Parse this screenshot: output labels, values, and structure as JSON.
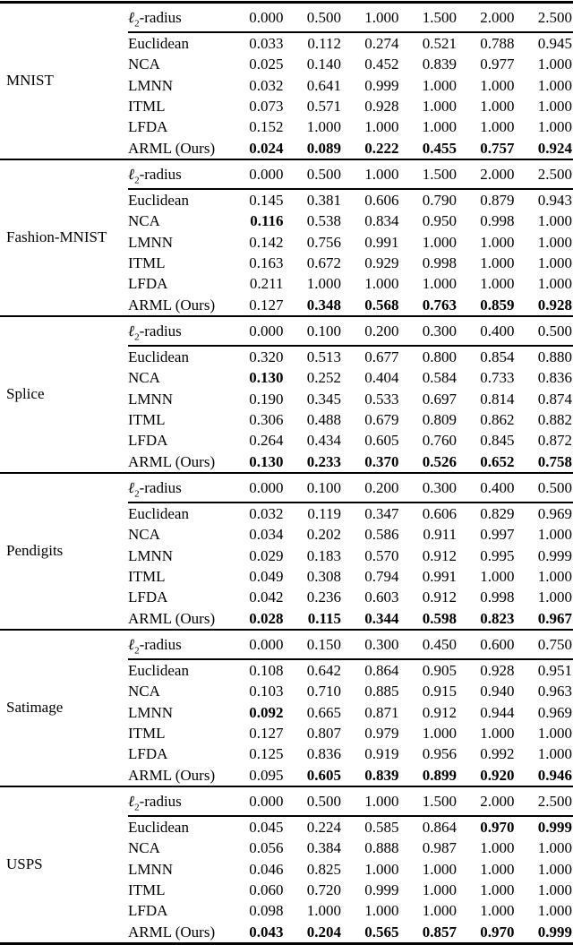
{
  "table": {
    "radius_label": {
      "symbol": "ℓ",
      "sub": "2",
      "suffix": "-radius"
    },
    "sections": [
      {
        "dataset": "MNIST",
        "slug": "mnist",
        "radii": [
          "0.000",
          "0.500",
          "1.000",
          "1.500",
          "2.000",
          "2.500"
        ],
        "rows": [
          {
            "method": "Euclidean",
            "values": [
              "0.033",
              "0.112",
              "0.274",
              "0.521",
              "0.788",
              "0.945"
            ],
            "bold": [
              0,
              0,
              0,
              0,
              0,
              0
            ]
          },
          {
            "method": "NCA",
            "values": [
              "0.025",
              "0.140",
              "0.452",
              "0.839",
              "0.977",
              "1.000"
            ],
            "bold": [
              0,
              0,
              0,
              0,
              0,
              0
            ]
          },
          {
            "method": "LMNN",
            "values": [
              "0.032",
              "0.641",
              "0.999",
              "1.000",
              "1.000",
              "1.000"
            ],
            "bold": [
              0,
              0,
              0,
              0,
              0,
              0
            ]
          },
          {
            "method": "ITML",
            "values": [
              "0.073",
              "0.571",
              "0.928",
              "1.000",
              "1.000",
              "1.000"
            ],
            "bold": [
              0,
              0,
              0,
              0,
              0,
              0
            ]
          },
          {
            "method": "LFDA",
            "values": [
              "0.152",
              "1.000",
              "1.000",
              "1.000",
              "1.000",
              "1.000"
            ],
            "bold": [
              0,
              0,
              0,
              0,
              0,
              0
            ]
          },
          {
            "method": "ARML (Ours)",
            "values": [
              "0.024",
              "0.089",
              "0.222",
              "0.455",
              "0.757",
              "0.924"
            ],
            "bold": [
              1,
              1,
              1,
              1,
              1,
              1
            ]
          }
        ]
      },
      {
        "dataset": "Fashion-MNIST",
        "slug": "fashion-mnist",
        "radii": [
          "0.000",
          "0.500",
          "1.000",
          "1.500",
          "2.000",
          "2.500"
        ],
        "rows": [
          {
            "method": "Euclidean",
            "values": [
              "0.145",
              "0.381",
              "0.606",
              "0.790",
              "0.879",
              "0.943"
            ],
            "bold": [
              0,
              0,
              0,
              0,
              0,
              0
            ]
          },
          {
            "method": "NCA",
            "values": [
              "0.116",
              "0.538",
              "0.834",
              "0.950",
              "0.998",
              "1.000"
            ],
            "bold": [
              1,
              0,
              0,
              0,
              0,
              0
            ]
          },
          {
            "method": "LMNN",
            "values": [
              "0.142",
              "0.756",
              "0.991",
              "1.000",
              "1.000",
              "1.000"
            ],
            "bold": [
              0,
              0,
              0,
              0,
              0,
              0
            ]
          },
          {
            "method": "ITML",
            "values": [
              "0.163",
              "0.672",
              "0.929",
              "0.998",
              "1.000",
              "1.000"
            ],
            "bold": [
              0,
              0,
              0,
              0,
              0,
              0
            ]
          },
          {
            "method": "LFDA",
            "values": [
              "0.211",
              "1.000",
              "1.000",
              "1.000",
              "1.000",
              "1.000"
            ],
            "bold": [
              0,
              0,
              0,
              0,
              0,
              0
            ]
          },
          {
            "method": "ARML (Ours)",
            "values": [
              "0.127",
              "0.348",
              "0.568",
              "0.763",
              "0.859",
              "0.928"
            ],
            "bold": [
              0,
              1,
              1,
              1,
              1,
              1
            ]
          }
        ]
      },
      {
        "dataset": "Splice",
        "slug": "splice",
        "radii": [
          "0.000",
          "0.100",
          "0.200",
          "0.300",
          "0.400",
          "0.500"
        ],
        "rows": [
          {
            "method": "Euclidean",
            "values": [
              "0.320",
              "0.513",
              "0.677",
              "0.800",
              "0.854",
              "0.880"
            ],
            "bold": [
              0,
              0,
              0,
              0,
              0,
              0
            ]
          },
          {
            "method": "NCA",
            "values": [
              "0.130",
              "0.252",
              "0.404",
              "0.584",
              "0.733",
              "0.836"
            ],
            "bold": [
              1,
              0,
              0,
              0,
              0,
              0
            ]
          },
          {
            "method": "LMNN",
            "values": [
              "0.190",
              "0.345",
              "0.533",
              "0.697",
              "0.814",
              "0.874"
            ],
            "bold": [
              0,
              0,
              0,
              0,
              0,
              0
            ]
          },
          {
            "method": "ITML",
            "values": [
              "0.306",
              "0.488",
              "0.679",
              "0.809",
              "0.862",
              "0.882"
            ],
            "bold": [
              0,
              0,
              0,
              0,
              0,
              0
            ]
          },
          {
            "method": "LFDA",
            "values": [
              "0.264",
              "0.434",
              "0.605",
              "0.760",
              "0.845",
              "0.872"
            ],
            "bold": [
              0,
              0,
              0,
              0,
              0,
              0
            ]
          },
          {
            "method": "ARML (Ours)",
            "values": [
              "0.130",
              "0.233",
              "0.370",
              "0.526",
              "0.652",
              "0.758"
            ],
            "bold": [
              1,
              1,
              1,
              1,
              1,
              1
            ]
          }
        ]
      },
      {
        "dataset": "Pendigits",
        "slug": "pendigits",
        "radii": [
          "0.000",
          "0.100",
          "0.200",
          "0.300",
          "0.400",
          "0.500"
        ],
        "rows": [
          {
            "method": "Euclidean",
            "values": [
              "0.032",
              "0.119",
              "0.347",
              "0.606",
              "0.829",
              "0.969"
            ],
            "bold": [
              0,
              0,
              0,
              0,
              0,
              0
            ]
          },
          {
            "method": "NCA",
            "values": [
              "0.034",
              "0.202",
              "0.586",
              "0.911",
              "0.997",
              "1.000"
            ],
            "bold": [
              0,
              0,
              0,
              0,
              0,
              0
            ]
          },
          {
            "method": "LMNN",
            "values": [
              "0.029",
              "0.183",
              "0.570",
              "0.912",
              "0.995",
              "0.999"
            ],
            "bold": [
              0,
              0,
              0,
              0,
              0,
              0
            ]
          },
          {
            "method": "ITML",
            "values": [
              "0.049",
              "0.308",
              "0.794",
              "0.991",
              "1.000",
              "1.000"
            ],
            "bold": [
              0,
              0,
              0,
              0,
              0,
              0
            ]
          },
          {
            "method": "LFDA",
            "values": [
              "0.042",
              "0.236",
              "0.603",
              "0.912",
              "0.998",
              "1.000"
            ],
            "bold": [
              0,
              0,
              0,
              0,
              0,
              0
            ]
          },
          {
            "method": "ARML (Ours)",
            "values": [
              "0.028",
              "0.115",
              "0.344",
              "0.598",
              "0.823",
              "0.967"
            ],
            "bold": [
              1,
              1,
              1,
              1,
              1,
              1
            ]
          }
        ]
      },
      {
        "dataset": "Satimage",
        "slug": "satimage",
        "radii": [
          "0.000",
          "0.150",
          "0.300",
          "0.450",
          "0.600",
          "0.750"
        ],
        "rows": [
          {
            "method": "Euclidean",
            "values": [
              "0.108",
              "0.642",
              "0.864",
              "0.905",
              "0.928",
              "0.951"
            ],
            "bold": [
              0,
              0,
              0,
              0,
              0,
              0
            ]
          },
          {
            "method": "NCA",
            "values": [
              "0.103",
              "0.710",
              "0.885",
              "0.915",
              "0.940",
              "0.963"
            ],
            "bold": [
              0,
              0,
              0,
              0,
              0,
              0
            ]
          },
          {
            "method": "LMNN",
            "values": [
              "0.092",
              "0.665",
              "0.871",
              "0.912",
              "0.944",
              "0.969"
            ],
            "bold": [
              1,
              0,
              0,
              0,
              0,
              0
            ]
          },
          {
            "method": "ITML",
            "values": [
              "0.127",
              "0.807",
              "0.979",
              "1.000",
              "1.000",
              "1.000"
            ],
            "bold": [
              0,
              0,
              0,
              0,
              0,
              0
            ]
          },
          {
            "method": "LFDA",
            "values": [
              "0.125",
              "0.836",
              "0.919",
              "0.956",
              "0.992",
              "1.000"
            ],
            "bold": [
              0,
              0,
              0,
              0,
              0,
              0
            ]
          },
          {
            "method": "ARML (Ours)",
            "values": [
              "0.095",
              "0.605",
              "0.839",
              "0.899",
              "0.920",
              "0.946"
            ],
            "bold": [
              0,
              1,
              1,
              1,
              1,
              1
            ]
          }
        ]
      },
      {
        "dataset": "USPS",
        "slug": "usps",
        "radii": [
          "0.000",
          "0.500",
          "1.000",
          "1.500",
          "2.000",
          "2.500"
        ],
        "rows": [
          {
            "method": "Euclidean",
            "values": [
              "0.045",
              "0.224",
              "0.585",
              "0.864",
              "0.970",
              "0.999"
            ],
            "bold": [
              0,
              0,
              0,
              0,
              1,
              1
            ]
          },
          {
            "method": "NCA",
            "values": [
              "0.056",
              "0.384",
              "0.888",
              "0.987",
              "1.000",
              "1.000"
            ],
            "bold": [
              0,
              0,
              0,
              0,
              0,
              0
            ]
          },
          {
            "method": "LMNN",
            "values": [
              "0.046",
              "0.825",
              "1.000",
              "1.000",
              "1.000",
              "1.000"
            ],
            "bold": [
              0,
              0,
              0,
              0,
              0,
              0
            ]
          },
          {
            "method": "ITML",
            "values": [
              "0.060",
              "0.720",
              "0.999",
              "1.000",
              "1.000",
              "1.000"
            ],
            "bold": [
              0,
              0,
              0,
              0,
              0,
              0
            ]
          },
          {
            "method": "LFDA",
            "values": [
              "0.098",
              "1.000",
              "1.000",
              "1.000",
              "1.000",
              "1.000"
            ],
            "bold": [
              0,
              0,
              0,
              0,
              0,
              0
            ]
          },
          {
            "method": "ARML (Ours)",
            "values": [
              "0.043",
              "0.204",
              "0.565",
              "0.857",
              "0.970",
              "0.999"
            ],
            "bold": [
              1,
              1,
              1,
              1,
              1,
              1
            ]
          }
        ]
      }
    ]
  }
}
